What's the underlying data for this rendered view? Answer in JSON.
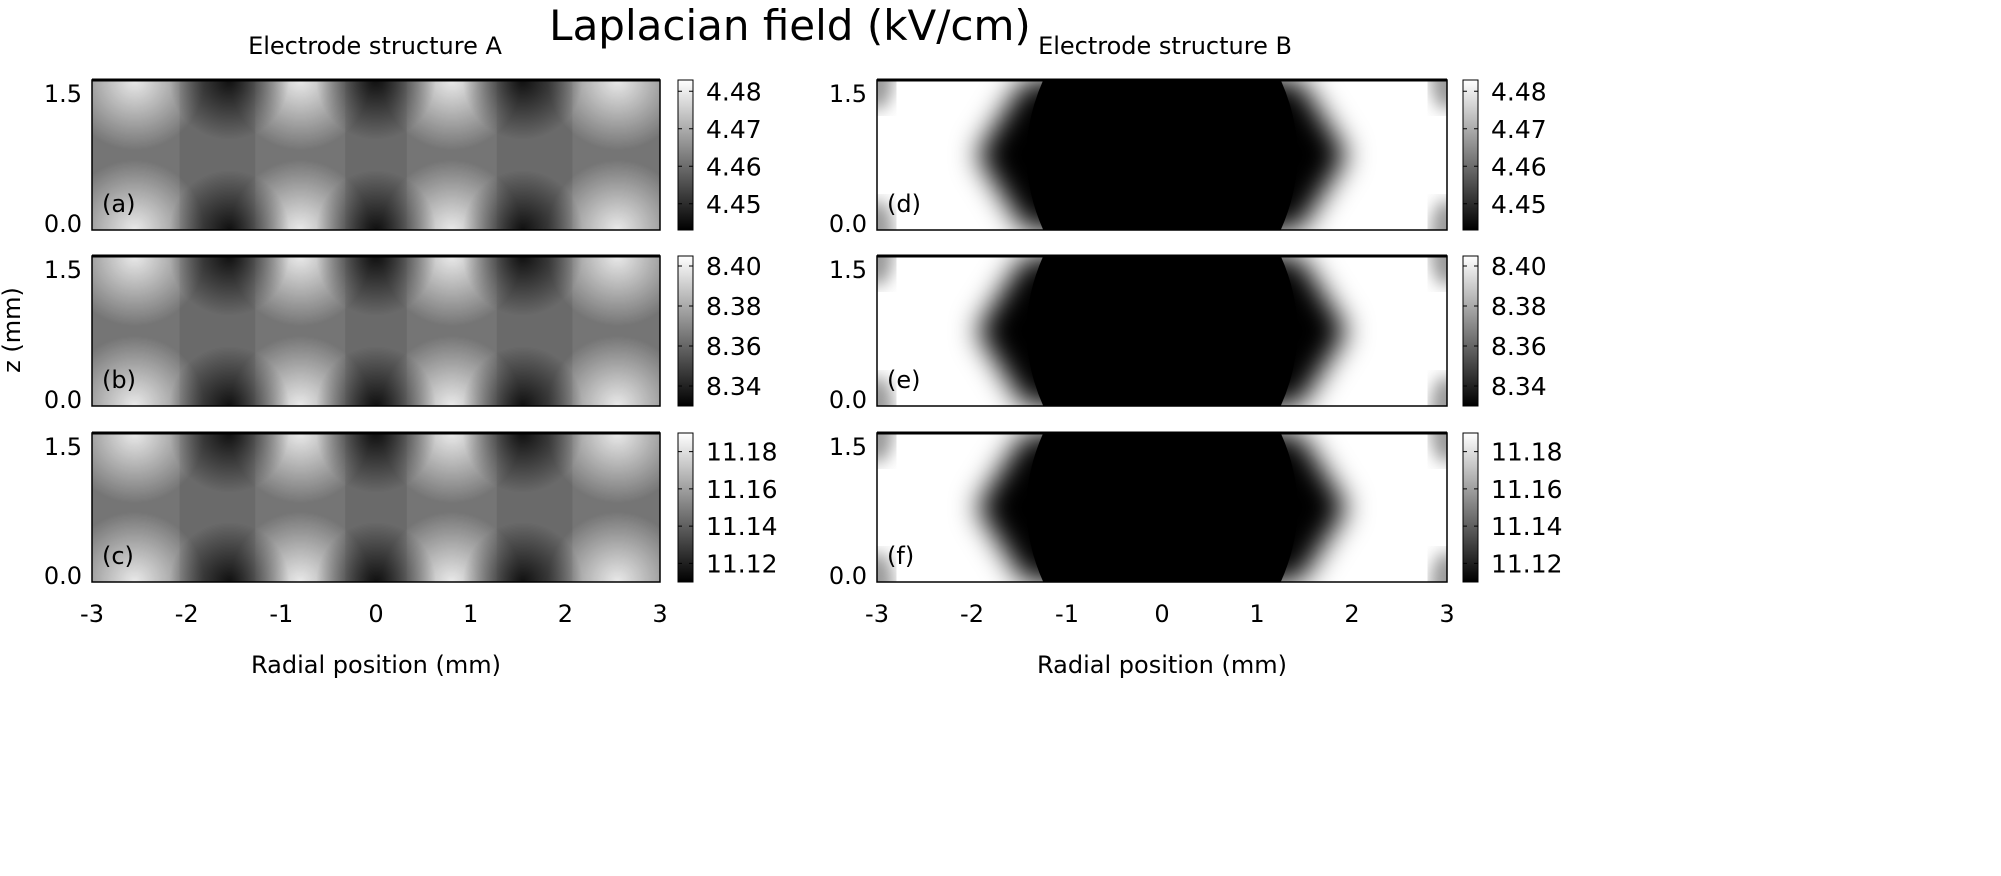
{
  "chart_data": {
    "type": "heatmap",
    "title": "Laplacian field (kV/cm)",
    "ylabel": "z (mm)",
    "xlabel": "Radial position (mm)",
    "xlim": [
      -3,
      3
    ],
    "ylim": [
      0,
      1.5
    ],
    "xticks": [
      "-3",
      "-2",
      "-1",
      "0",
      "1",
      "2",
      "3"
    ],
    "yticks": [
      "0.0",
      "1.5"
    ],
    "colormap": "grayscale",
    "columns": [
      {
        "title": "Electrode structure A",
        "pattern": "periodic bright/dark spots at top and bottom electrodes on gray background",
        "panels": [
          {
            "label": "(a)",
            "colorbar_ticks": [
              "4.48",
              "4.47",
              "4.46",
              "4.45"
            ],
            "crange": [
              4.443,
              4.483
            ]
          },
          {
            "label": "(b)",
            "colorbar_ticks": [
              "8.40",
              "8.38",
              "8.36",
              "8.34"
            ],
            "crange": [
              8.33,
              8.405
            ]
          },
          {
            "label": "(c)",
            "colorbar_ticks": [
              "11.18",
              "11.16",
              "11.14",
              "11.12"
            ],
            "crange": [
              11.11,
              11.19
            ]
          }
        ]
      },
      {
        "title": "Electrode structure B",
        "pattern": "dark central region between about -1.4 and 1.4 mm, bright outer regions",
        "panels": [
          {
            "label": "(d)",
            "colorbar_ticks": [
              "4.48",
              "4.47",
              "4.46",
              "4.45"
            ],
            "crange": [
              4.443,
              4.483
            ]
          },
          {
            "label": "(e)",
            "colorbar_ticks": [
              "8.40",
              "8.38",
              "8.36",
              "8.34"
            ],
            "crange": [
              8.33,
              8.405
            ]
          },
          {
            "label": "(f)",
            "colorbar_ticks": [
              "11.18",
              "11.16",
              "11.14",
              "11.12"
            ],
            "crange": [
              11.11,
              11.19
            ]
          }
        ]
      }
    ]
  }
}
